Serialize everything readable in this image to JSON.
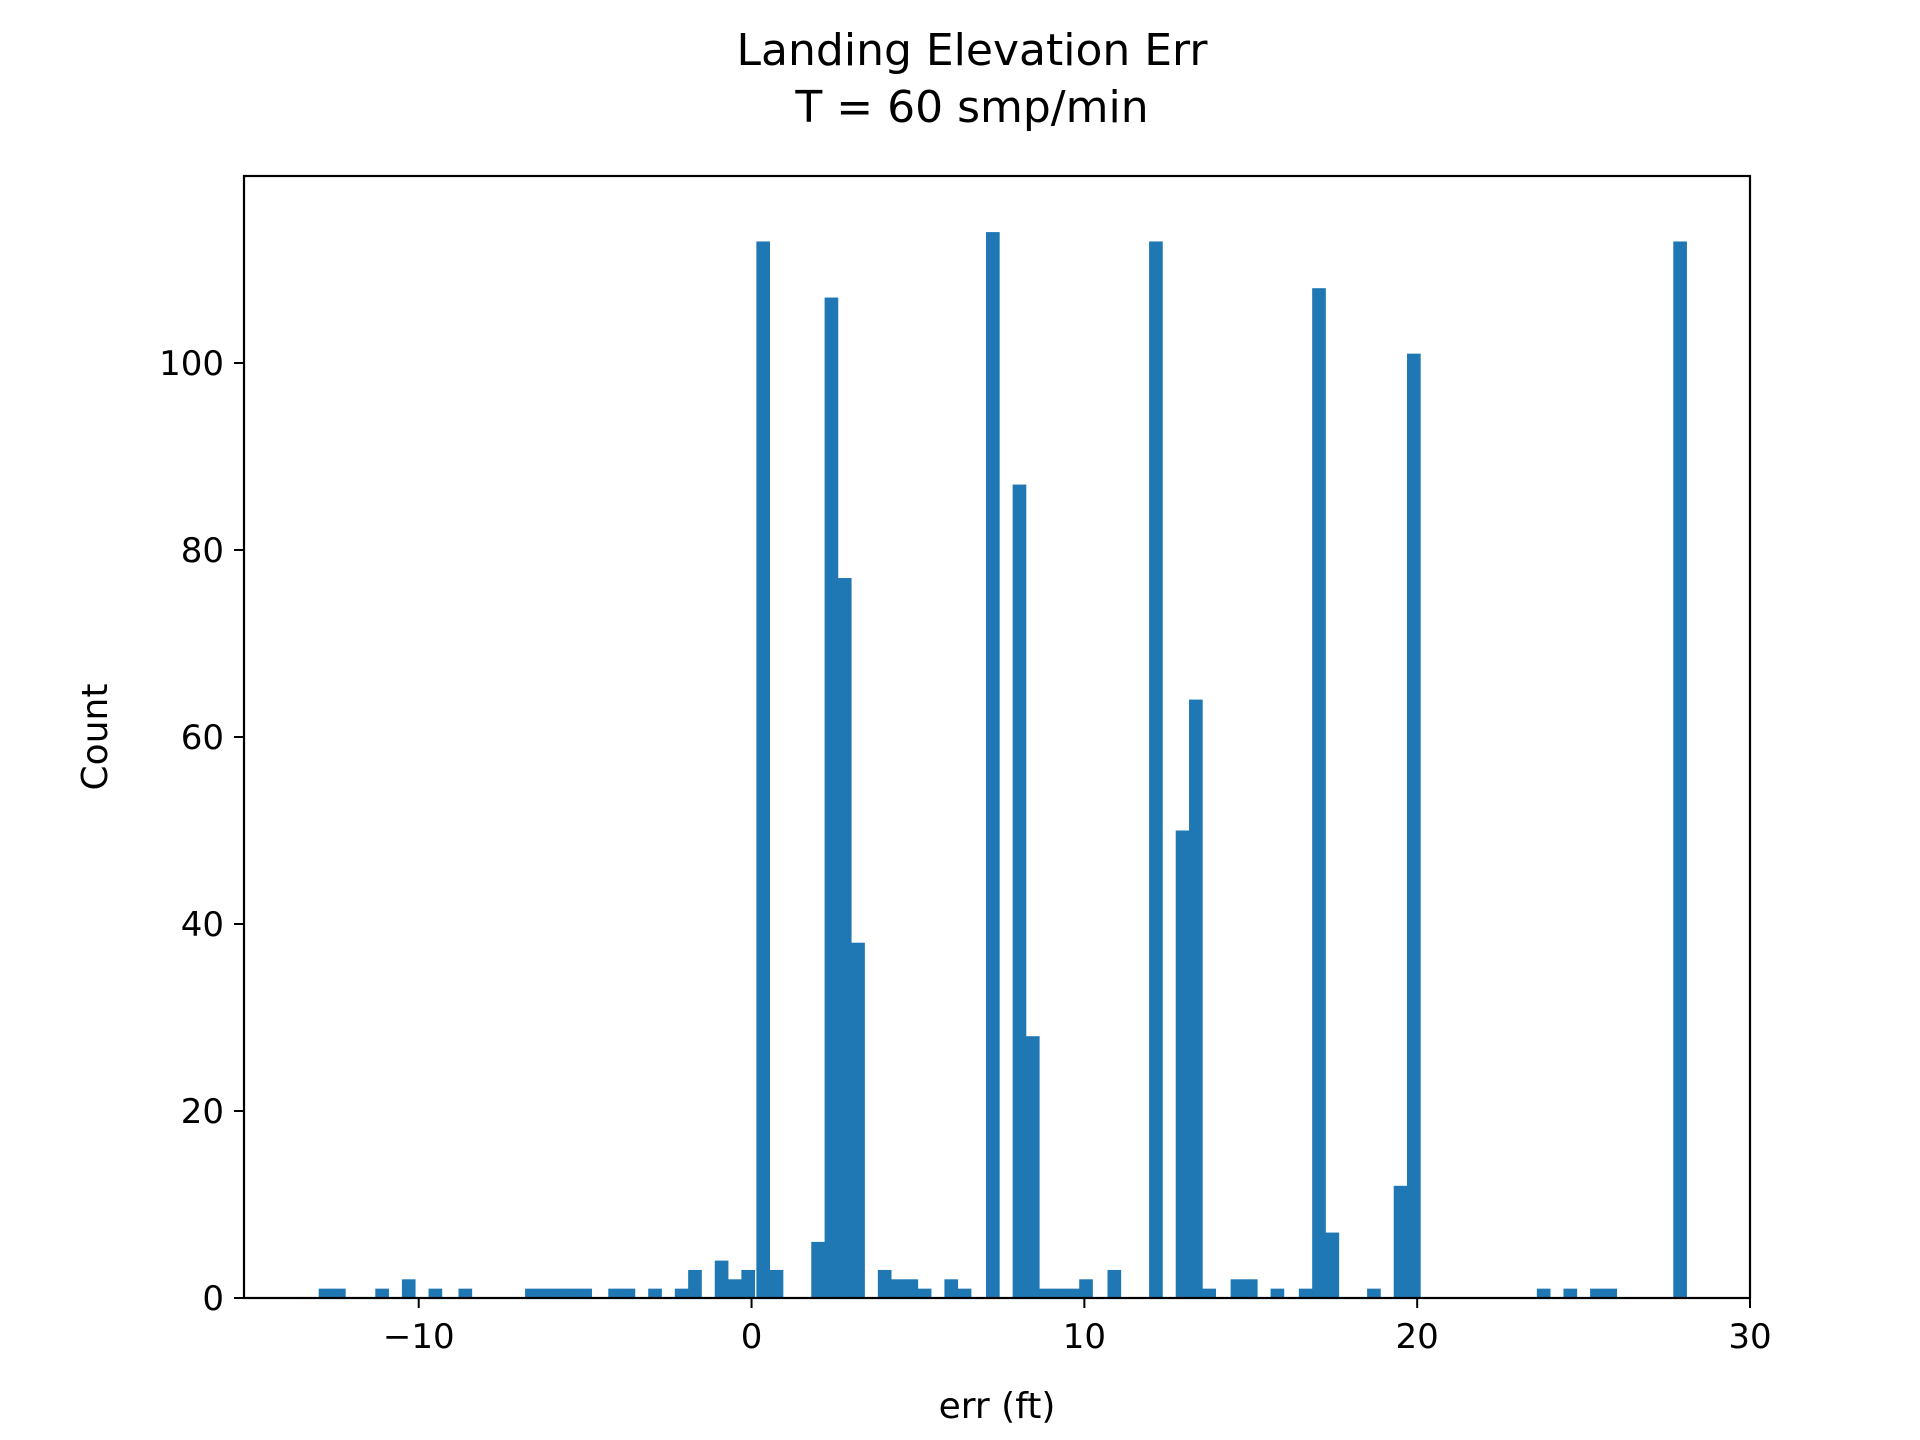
{
  "chart_data": {
    "type": "bar",
    "title": "Landing Elevation Err",
    "subtitle": "T = 60 smp/min",
    "xlabel": "err (ft)",
    "ylabel": "Count",
    "xlim": [
      -15.25,
      30
    ],
    "ylim": [
      0,
      120
    ],
    "xticks": [
      -10,
      0,
      10,
      20,
      30
    ],
    "xtick_labels": [
      "−10",
      "0",
      "10",
      "20",
      "30"
    ],
    "yticks": [
      0,
      20,
      40,
      60,
      80,
      100
    ],
    "ytick_labels": [
      "0",
      "20",
      "40",
      "60",
      "80",
      "100"
    ],
    "grid": false,
    "bar_color": "#1f77b4",
    "bin_width": 0.41,
    "bins": [
      {
        "x": -12.8,
        "count": 1
      },
      {
        "x": -12.4,
        "count": 1
      },
      {
        "x": -11.1,
        "count": 1
      },
      {
        "x": -10.3,
        "count": 2
      },
      {
        "x": -9.5,
        "count": 1
      },
      {
        "x": -8.6,
        "count": 1
      },
      {
        "x": -6.6,
        "count": 1
      },
      {
        "x": -6.2,
        "count": 1
      },
      {
        "x": -5.8,
        "count": 1
      },
      {
        "x": -5.4,
        "count": 1
      },
      {
        "x": -5.0,
        "count": 1
      },
      {
        "x": -4.1,
        "count": 1
      },
      {
        "x": -3.7,
        "count": 1
      },
      {
        "x": -2.9,
        "count": 1
      },
      {
        "x": -2.1,
        "count": 1
      },
      {
        "x": -1.7,
        "count": 3
      },
      {
        "x": -0.9,
        "count": 4
      },
      {
        "x": -0.5,
        "count": 2
      },
      {
        "x": -0.1,
        "count": 3
      },
      {
        "x": 0.35,
        "count": 113
      },
      {
        "x": 0.75,
        "count": 3
      },
      {
        "x": 2.0,
        "count": 6
      },
      {
        "x": 2.4,
        "count": 107
      },
      {
        "x": 2.8,
        "count": 77
      },
      {
        "x": 3.2,
        "count": 38
      },
      {
        "x": 4.0,
        "count": 3
      },
      {
        "x": 4.4,
        "count": 2
      },
      {
        "x": 4.8,
        "count": 2
      },
      {
        "x": 5.2,
        "count": 1
      },
      {
        "x": 6.0,
        "count": 2
      },
      {
        "x": 6.4,
        "count": 1
      },
      {
        "x": 7.25,
        "count": 114
      },
      {
        "x": 8.05,
        "count": 87
      },
      {
        "x": 8.45,
        "count": 28
      },
      {
        "x": 8.85,
        "count": 1
      },
      {
        "x": 9.25,
        "count": 1
      },
      {
        "x": 9.65,
        "count": 1
      },
      {
        "x": 10.05,
        "count": 2
      },
      {
        "x": 10.9,
        "count": 3
      },
      {
        "x": 12.15,
        "count": 113
      },
      {
        "x": 12.95,
        "count": 50
      },
      {
        "x": 13.35,
        "count": 64
      },
      {
        "x": 13.75,
        "count": 1
      },
      {
        "x": 14.6,
        "count": 2
      },
      {
        "x": 15.0,
        "count": 2
      },
      {
        "x": 15.8,
        "count": 1
      },
      {
        "x": 16.65,
        "count": 1
      },
      {
        "x": 17.05,
        "count": 108
      },
      {
        "x": 17.45,
        "count": 7
      },
      {
        "x": 18.7,
        "count": 1
      },
      {
        "x": 19.5,
        "count": 12
      },
      {
        "x": 19.9,
        "count": 101
      },
      {
        "x": 23.8,
        "count": 1
      },
      {
        "x": 24.6,
        "count": 1
      },
      {
        "x": 25.4,
        "count": 1
      },
      {
        "x": 25.8,
        "count": 1
      },
      {
        "x": 27.9,
        "count": 113
      }
    ]
  }
}
